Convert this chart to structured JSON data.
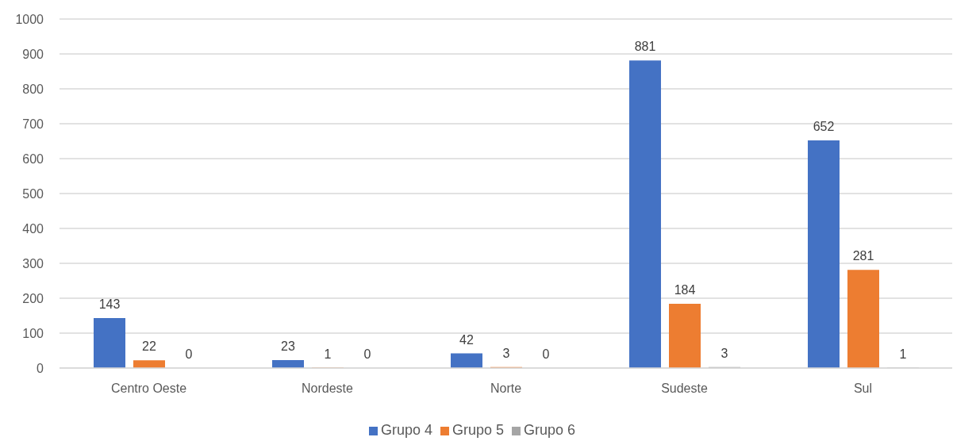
{
  "chart_data": {
    "type": "bar",
    "categories": [
      "Centro Oeste",
      "Nordeste",
      "Norte",
      "Sudeste",
      "Sul"
    ],
    "series": [
      {
        "name": "Grupo 4",
        "color": "#4472c4",
        "values": [
          143,
          23,
          42,
          881,
          652
        ]
      },
      {
        "name": "Grupo 5",
        "color": "#ed7d31",
        "values": [
          22,
          1,
          3,
          184,
          281
        ]
      },
      {
        "name": "Grupo 6",
        "color": "#a5a5a5",
        "values": [
          0,
          0,
          0,
          3,
          1
        ]
      }
    ],
    "ylim": [
      0,
      1000
    ],
    "yticks": [
      0,
      100,
      200,
      300,
      400,
      500,
      600,
      700,
      800,
      900,
      1000
    ],
    "grid": "y",
    "legend": "bottom",
    "data_labels": true
  }
}
